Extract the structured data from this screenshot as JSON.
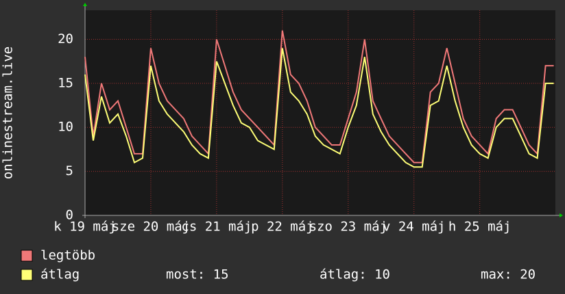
{
  "chart_data": {
    "type": "line",
    "y_label": "onlinestream.live",
    "x": [
      0,
      0.125,
      0.25,
      0.375,
      0.5,
      0.625,
      0.75,
      0.875,
      1,
      1.125,
      1.25,
      1.375,
      1.5,
      1.625,
      1.75,
      1.875,
      2,
      2.125,
      2.25,
      2.375,
      2.5,
      2.625,
      2.75,
      2.875,
      3,
      3.125,
      3.25,
      3.375,
      3.5,
      3.625,
      3.75,
      3.875,
      4,
      4.125,
      4.25,
      4.375,
      4.5,
      4.625,
      4.75,
      4.875,
      5,
      5.125,
      5.25,
      5.375,
      5.5,
      5.625,
      5.75,
      5.875,
      6,
      6.125,
      6.25,
      6.375,
      6.5,
      6.625,
      6.75,
      6.875,
      7,
      7.125
    ],
    "series": [
      {
        "name": "legtöbb",
        "color": "#f07878",
        "values": [
          18,
          9,
          15,
          12,
          13,
          10,
          7,
          7,
          19,
          15,
          13,
          12,
          11,
          9,
          8,
          7,
          20,
          17,
          14,
          12,
          11,
          10,
          9,
          8,
          21,
          16,
          15,
          13,
          10,
          9,
          8,
          8,
          11,
          14,
          20,
          13,
          11,
          9,
          8,
          7,
          6,
          6,
          14,
          15,
          19,
          15,
          11,
          9,
          8,
          7,
          11,
          12,
          12,
          10,
          8,
          7,
          17,
          17
        ]
      },
      {
        "name": "átlag",
        "color": "#ffff77",
        "values": [
          16,
          8.5,
          13.5,
          10.5,
          11.5,
          9,
          6,
          6.5,
          17,
          13,
          11.5,
          10.5,
          9.5,
          8,
          7,
          6.5,
          17.5,
          15,
          12.5,
          10.5,
          10,
          8.5,
          8,
          7.5,
          19,
          14,
          13,
          11.5,
          9,
          8,
          7.5,
          7,
          10,
          12.5,
          18,
          11.5,
          9.5,
          8,
          7,
          6,
          5.5,
          5.5,
          12.5,
          13,
          17,
          13,
          10,
          8,
          7,
          6.5,
          10,
          11,
          11,
          9,
          7,
          6.5,
          15,
          15
        ]
      }
    ],
    "xlim": [
      0,
      7.15
    ],
    "xticks": [
      {
        "value": 0,
        "label": "k 19 máj"
      },
      {
        "value": 1,
        "label": "sze 20 máj"
      },
      {
        "value": 2,
        "label": "cs 21 máj"
      },
      {
        "value": 3,
        "label": "p 22 máj"
      },
      {
        "value": 4,
        "label": "szo 23 máj"
      },
      {
        "value": 5,
        "label": "v 24 máj"
      },
      {
        "value": 6,
        "label": "h 25 máj"
      }
    ],
    "ylim": [
      0,
      23.3
    ],
    "yticks": [
      0,
      5,
      10,
      15,
      20
    ],
    "grid": true,
    "stats": [
      "most: 15",
      "átlag: 10",
      "max: 20"
    ]
  }
}
